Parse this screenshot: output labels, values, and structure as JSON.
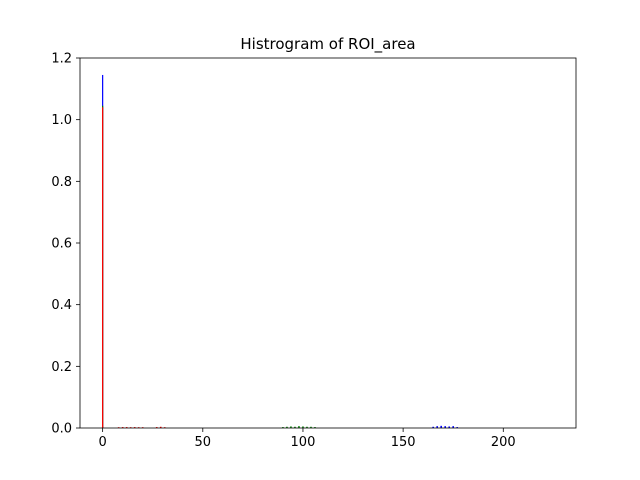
{
  "chart_data": {
    "type": "bar",
    "title": "Histrogram of ROI_area",
    "xlabel": "",
    "ylabel": "",
    "xlim": [
      -11.3,
      236.3
    ],
    "ylim": [
      0,
      1.2
    ],
    "x_ticks": [
      0,
      50,
      100,
      150,
      200
    ],
    "y_ticks": [
      0.0,
      0.2,
      0.4,
      0.6,
      0.8,
      1.0,
      1.2
    ],
    "x_tick_labels": [
      "0",
      "50",
      "100",
      "150",
      "200"
    ],
    "y_tick_labels": [
      "0.0",
      "0.2",
      "0.4",
      "0.6",
      "0.8",
      "1.0",
      "1.2"
    ],
    "grid": false,
    "series": [
      {
        "color": "#0000ff",
        "bins": [
          {
            "x": 0,
            "value": 1.145
          },
          {
            "x": 165,
            "value": 0.004
          },
          {
            "x": 167,
            "value": 0.006
          },
          {
            "x": 169,
            "value": 0.007
          },
          {
            "x": 171,
            "value": 0.006
          },
          {
            "x": 173,
            "value": 0.005
          },
          {
            "x": 175,
            "value": 0.006
          },
          {
            "x": 177,
            "value": 0.003
          }
        ]
      },
      {
        "color": "#008000",
        "bins": [
          {
            "x": 0,
            "value": 1.045
          },
          {
            "x": 90,
            "value": 0.003
          },
          {
            "x": 92,
            "value": 0.004
          },
          {
            "x": 94,
            "value": 0.005
          },
          {
            "x": 96,
            "value": 0.004
          },
          {
            "x": 98,
            "value": 0.006
          },
          {
            "x": 100,
            "value": 0.005
          },
          {
            "x": 102,
            "value": 0.004
          },
          {
            "x": 104,
            "value": 0.004
          },
          {
            "x": 106,
            "value": 0.003
          }
        ]
      },
      {
        "color": "#ff0000",
        "bins": [
          {
            "x": 0,
            "value": 1.04
          },
          {
            "x": 8,
            "value": 0.002
          },
          {
            "x": 10,
            "value": 0.003
          },
          {
            "x": 12,
            "value": 0.003
          },
          {
            "x": 14,
            "value": 0.002
          },
          {
            "x": 16,
            "value": 0.003
          },
          {
            "x": 18,
            "value": 0.002
          },
          {
            "x": 20,
            "value": 0.002
          },
          {
            "x": 27,
            "value": 0.003
          },
          {
            "x": 29,
            "value": 0.004
          },
          {
            "x": 31,
            "value": 0.002
          }
        ]
      }
    ]
  }
}
